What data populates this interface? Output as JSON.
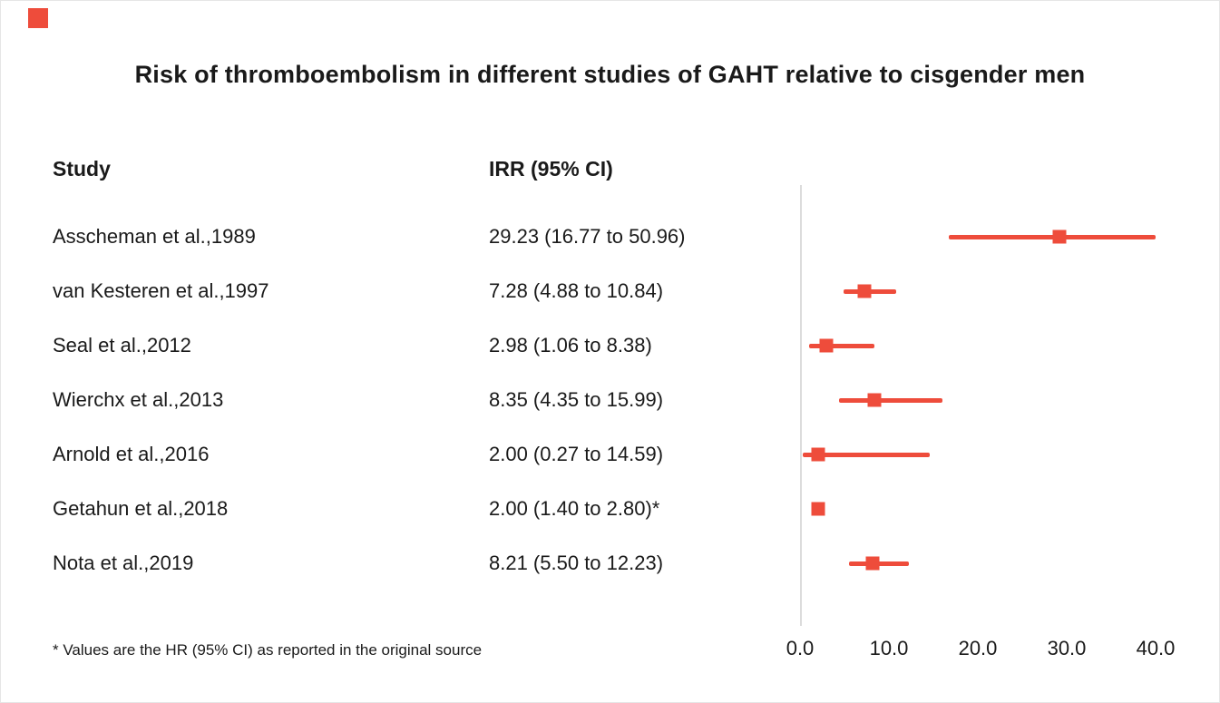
{
  "title": "Risk of thromboembolism in different studies of GAHT relative to cisgender men",
  "columns": {
    "study": "Study",
    "irr": "IRR (95% CI)"
  },
  "footnote": "* Values are the HR (95% CI) as reported in the original source",
  "accent_color": "#ee4c3b",
  "chart_data": {
    "type": "forest",
    "title": "Risk of thromboembolism in different studies of GAHT relative to cisgender men",
    "xlabel": "",
    "ylabel": "",
    "xlim": [
      0,
      40
    ],
    "x_ticks": [
      0.0,
      10.0,
      20.0,
      30.0,
      40.0
    ],
    "grid": false,
    "marker": "square",
    "studies": [
      {
        "label": "Asscheman et al.,1989",
        "irr_text": "29.23 (16.77 to 50.96)",
        "est": 29.23,
        "lo": 16.77,
        "hi": 50.96
      },
      {
        "label": "van Kesteren et al.,1997",
        "irr_text": "7.28 (4.88 to 10.84)",
        "est": 7.28,
        "lo": 4.88,
        "hi": 10.84
      },
      {
        "label": "Seal et al.,2012",
        "irr_text": "2.98 (1.06 to 8.38)",
        "est": 2.98,
        "lo": 1.06,
        "hi": 8.38
      },
      {
        "label": "Wierchx et al.,2013",
        "irr_text": "8.35 (4.35 to 15.99)",
        "est": 8.35,
        "lo": 4.35,
        "hi": 15.99
      },
      {
        "label": "Arnold et al.,2016",
        "irr_text": "2.00 (0.27 to 14.59)",
        "est": 2.0,
        "lo": 0.27,
        "hi": 14.59
      },
      {
        "label": "Getahun et al.,2018",
        "irr_text": "2.00 (1.40 to 2.80)*",
        "est": 2.0,
        "lo": 1.4,
        "hi": 2.8
      },
      {
        "label": "Nota et al.,2019",
        "irr_text": "8.21 (5.50 to 12.23)",
        "est": 8.21,
        "lo": 5.5,
        "hi": 12.23
      }
    ]
  }
}
